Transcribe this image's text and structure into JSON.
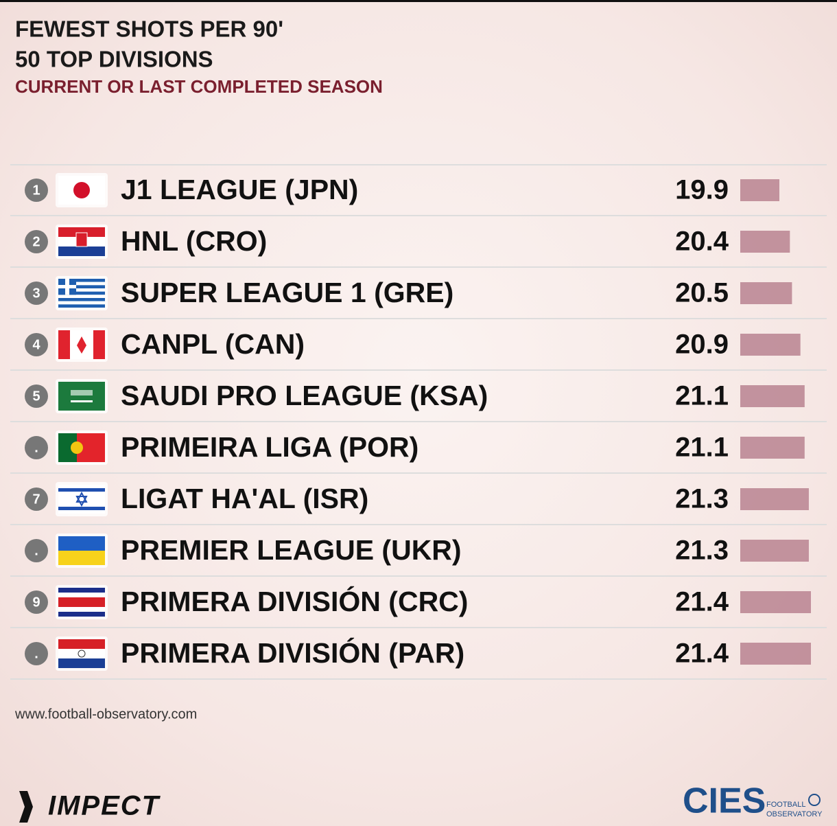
{
  "chart_data": {
    "type": "bar",
    "title": "FEWEST SHOTS PER 90'",
    "subtitle": "50 TOP DIVISIONS",
    "subtitle2": "CURRENT OR LAST COMPLETED SEASON",
    "ranks": [
      "1",
      "2",
      "3",
      "4",
      "5",
      ".",
      "7",
      ".",
      "9",
      "."
    ],
    "categories": [
      "J1 LEAGUE (JPN)",
      "HNL (CRO)",
      "SUPER LEAGUE 1 (GRE)",
      "CANPL (CAN)",
      "SAUDI PRO LEAGUE (KSA)",
      "PRIMEIRA LIGA (POR)",
      "LIGAT HA'AL (ISR)",
      "PREMIER LEAGUE (UKR)",
      "PRIMERA DIVISIÓN (CRC)",
      "PRIMERA DIVISIÓN (PAR)"
    ],
    "values": [
      19.9,
      20.4,
      20.5,
      20.9,
      21.1,
      21.1,
      21.3,
      21.3,
      21.4,
      21.4
    ],
    "value_labels": [
      "19.9",
      "20.4",
      "20.5",
      "20.9",
      "21.1",
      "21.1",
      "21.3",
      "21.3",
      "21.4",
      "21.4"
    ],
    "color": "#b98390"
  },
  "source": "www.football-observatory.com",
  "logos": {
    "left": "IMPECT",
    "right": "CIES",
    "right_sub1": "FOOTBALL",
    "right_sub2": "OBSERVATORY"
  }
}
